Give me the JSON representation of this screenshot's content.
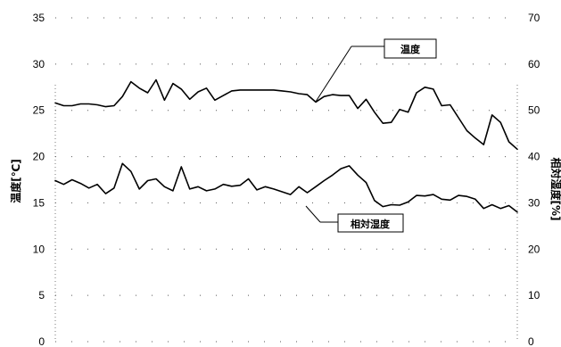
{
  "chart_data": {
    "type": "line",
    "left_axis": {
      "label": "温度[℃]",
      "ticks": [
        "0",
        "5",
        "10",
        "15",
        "20",
        "25",
        "30",
        "35"
      ],
      "range": [
        0,
        35
      ]
    },
    "right_axis": {
      "label": "相対湿度[%]",
      "ticks": [
        "0",
        "10",
        "20",
        "30",
        "40",
        "50",
        "60",
        "70"
      ],
      "range": [
        0,
        70
      ]
    },
    "grid": "dotted",
    "series": [
      {
        "name": "温度",
        "axis": "left",
        "callout": "温度",
        "values": [
          25.8,
          25.5,
          25.5,
          25.7,
          25.7,
          25.6,
          25.4,
          25.5,
          26.5,
          28.1,
          27.4,
          26.9,
          28.3,
          26.1,
          27.9,
          27.3,
          26.2,
          27.0,
          27.4,
          26.1,
          26.6,
          27.1,
          27.2,
          27.2,
          27.2,
          27.2,
          27.2,
          27.1,
          27.0,
          26.8,
          26.7,
          25.9,
          26.5,
          26.7,
          26.6,
          26.6,
          25.2,
          26.2,
          24.8,
          23.6,
          23.7,
          25.1,
          24.8,
          26.9,
          27.5,
          27.3,
          25.5,
          25.6,
          24.2,
          22.8,
          22.0,
          21.3,
          24.5,
          23.7,
          21.6,
          20.8
        ]
      },
      {
        "name": "相対湿度",
        "axis": "right",
        "callout": "相対湿度",
        "values": [
          34.8,
          34.0,
          35.0,
          34.2,
          33.2,
          34.0,
          32.0,
          33.2,
          38.5,
          36.8,
          33.0,
          34.8,
          35.2,
          33.5,
          32.6,
          37.8,
          33.0,
          33.5,
          32.6,
          33.0,
          34.0,
          33.6,
          33.8,
          35.2,
          32.8,
          33.5,
          33.0,
          32.4,
          31.8,
          33.5,
          32.2,
          33.5,
          34.8,
          36.0,
          37.4,
          38.0,
          36.0,
          34.4,
          30.5,
          29.2,
          29.6,
          29.5,
          30.2,
          31.6,
          31.5,
          31.8,
          30.8,
          30.6,
          31.6,
          31.4,
          30.8,
          28.8,
          29.6,
          28.8,
          29.4,
          28.0
        ]
      }
    ]
  }
}
